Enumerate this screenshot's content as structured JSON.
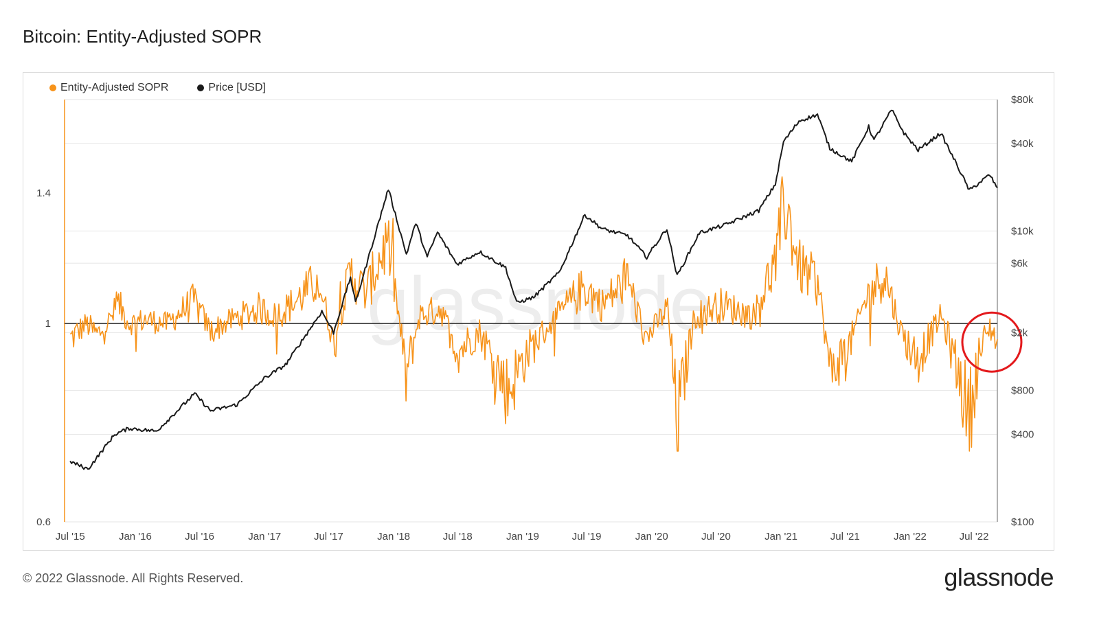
{
  "header": {
    "title": "Bitcoin: Entity-Adjusted SOPR"
  },
  "legend": [
    {
      "label": "Entity-Adjusted SOPR",
      "color": "#f7931a"
    },
    {
      "label": "Price [USD]",
      "color": "#1a1a1a"
    }
  ],
  "watermark": "glassnode",
  "footer": {
    "copyright": "© 2022 Glassnode. All Rights Reserved.",
    "brand": "glassnode"
  },
  "colors": {
    "sopr": "#f7931a",
    "price": "#1a1a1a",
    "baseline": "#333333",
    "highlight": "#e3191c",
    "grid": "#e6e6e6"
  },
  "chart_data": {
    "type": "line",
    "title": "Bitcoin: Entity-Adjusted SOPR",
    "x_ticks": [
      "Jul '15",
      "Jan '16",
      "Jul '16",
      "Jan '17",
      "Jul '17",
      "Jan '18",
      "Jul '18",
      "Jan '19",
      "Jul '19",
      "Jan '20",
      "Jul '20",
      "Jan '21",
      "Jul '21",
      "Jan '22",
      "Jul '22"
    ],
    "x_range": [
      "2015-06-15",
      "2022-09-05"
    ],
    "y_left": {
      "ticks": [
        "0.6",
        "1",
        "1.4"
      ],
      "tick_values": [
        0.6,
        1.0,
        1.4
      ],
      "scale": "log",
      "range": [
        0.6,
        1.78
      ]
    },
    "y_right": {
      "ticks": [
        "$100",
        "$400",
        "$800",
        "$2k",
        "$6k",
        "$10k",
        "$40k",
        "$80k"
      ],
      "tick_values": [
        100,
        400,
        800,
        2000,
        6000,
        10000,
        40000,
        80000
      ],
      "scale": "log",
      "range": [
        100,
        80000
      ]
    },
    "baseline": 1.0,
    "series": [
      {
        "name": "Entity-Adjusted SOPR",
        "axis": "left",
        "points": [
          [
            "2015-07-01",
            0.96
          ],
          [
            "2015-08-15",
            1.0
          ],
          [
            "2015-09-15",
            0.97
          ],
          [
            "2015-10-15",
            1.0
          ],
          [
            "2015-11-15",
            1.05
          ],
          [
            "2015-12-15",
            1.0
          ],
          [
            "2016-02-01",
            1.01
          ],
          [
            "2016-04-01",
            1.0
          ],
          [
            "2016-06-15",
            1.06
          ],
          [
            "2016-08-01",
            0.98
          ],
          [
            "2016-10-01",
            1.01
          ],
          [
            "2016-12-15",
            1.04
          ],
          [
            "2017-02-01",
            1.02
          ],
          [
            "2017-04-01",
            1.06
          ],
          [
            "2017-06-01",
            1.12
          ],
          [
            "2017-07-15",
            0.95
          ],
          [
            "2017-09-01",
            1.14
          ],
          [
            "2017-10-15",
            1.08
          ],
          [
            "2017-12-15",
            1.24
          ],
          [
            "2018-02-05",
            0.87
          ],
          [
            "2018-03-15",
            1.02
          ],
          [
            "2018-05-15",
            1.04
          ],
          [
            "2018-07-01",
            0.93
          ],
          [
            "2018-09-01",
            0.98
          ],
          [
            "2018-11-20",
            0.84
          ],
          [
            "2019-01-15",
            0.93
          ],
          [
            "2019-04-01",
            1.01
          ],
          [
            "2019-06-25",
            1.1
          ],
          [
            "2019-08-15",
            1.05
          ],
          [
            "2019-10-25",
            1.12
          ],
          [
            "2019-12-15",
            0.96
          ],
          [
            "2020-02-15",
            1.04
          ],
          [
            "2020-03-13",
            0.77
          ],
          [
            "2020-05-01",
            1.02
          ],
          [
            "2020-07-15",
            1.05
          ],
          [
            "2020-10-15",
            1.02
          ],
          [
            "2020-12-20",
            1.18
          ],
          [
            "2021-01-10",
            1.38
          ],
          [
            "2021-02-20",
            1.16
          ],
          [
            "2021-04-15",
            1.11
          ],
          [
            "2021-05-20",
            0.88
          ],
          [
            "2021-07-15",
            0.95
          ],
          [
            "2021-09-01",
            1.07
          ],
          [
            "2021-10-20",
            1.14
          ],
          [
            "2021-12-05",
            0.98
          ],
          [
            "2022-01-22",
            0.91
          ],
          [
            "2022-03-30",
            1.02
          ],
          [
            "2022-06-18",
            0.79
          ],
          [
            "2022-07-15",
            0.92
          ],
          [
            "2022-08-15",
            0.99
          ],
          [
            "2022-09-05",
            0.96
          ]
        ]
      },
      {
        "name": "Price [USD]",
        "axis": "right",
        "points": [
          [
            "2015-07-01",
            260
          ],
          [
            "2015-08-20",
            230
          ],
          [
            "2015-11-04",
            400
          ],
          [
            "2015-12-15",
            440
          ],
          [
            "2016-03-01",
            420
          ],
          [
            "2016-06-17",
            760
          ],
          [
            "2016-08-01",
            580
          ],
          [
            "2016-10-15",
            640
          ],
          [
            "2016-12-31",
            970
          ],
          [
            "2017-03-01",
            1200
          ],
          [
            "2017-06-12",
            2800
          ],
          [
            "2017-07-15",
            2000
          ],
          [
            "2017-09-01",
            4800
          ],
          [
            "2017-09-15",
            3200
          ],
          [
            "2017-12-17",
            19500
          ],
          [
            "2018-02-06",
            6900
          ],
          [
            "2018-03-05",
            11400
          ],
          [
            "2018-04-06",
            6600
          ],
          [
            "2018-05-05",
            9800
          ],
          [
            "2018-06-29",
            5900
          ],
          [
            "2018-09-01",
            7200
          ],
          [
            "2018-11-14",
            5600
          ],
          [
            "2018-12-15",
            3200
          ],
          [
            "2019-02-01",
            3500
          ],
          [
            "2019-04-15",
            5200
          ],
          [
            "2019-06-26",
            12900
          ],
          [
            "2019-08-15",
            10300
          ],
          [
            "2019-10-25",
            9300
          ],
          [
            "2019-12-18",
            6600
          ],
          [
            "2020-02-13",
            10400
          ],
          [
            "2020-03-13",
            4900
          ],
          [
            "2020-05-15",
            9700
          ],
          [
            "2020-07-27",
            11000
          ],
          [
            "2020-10-30",
            13800
          ],
          [
            "2020-12-16",
            21000
          ],
          [
            "2021-01-08",
            41000
          ],
          [
            "2021-02-21",
            57000
          ],
          [
            "2021-04-14",
            63000
          ],
          [
            "2021-05-19",
            37000
          ],
          [
            "2021-07-20",
            30000
          ],
          [
            "2021-09-06",
            52000
          ],
          [
            "2021-09-21",
            42000
          ],
          [
            "2021-11-10",
            68000
          ],
          [
            "2021-12-15",
            47000
          ],
          [
            "2022-01-24",
            36000
          ],
          [
            "2022-03-29",
            47000
          ],
          [
            "2022-05-12",
            29000
          ],
          [
            "2022-06-18",
            19000
          ],
          [
            "2022-08-14",
            24300
          ],
          [
            "2022-09-05",
            19800
          ]
        ]
      }
    ],
    "annotations": [
      {
        "type": "circle",
        "date": "2022-08-01",
        "value": 0.96,
        "color": "#e3191c"
      }
    ]
  }
}
